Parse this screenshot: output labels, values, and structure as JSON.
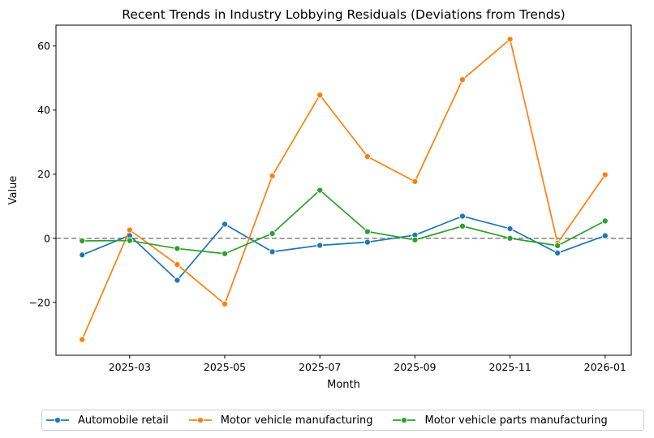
{
  "chart_data": {
    "type": "line",
    "title": "Recent Trends in Industry Lobbying Residuals (Deviations from Trends)",
    "xlabel": "Month",
    "ylabel": "Value",
    "x": [
      "2025-02",
      "2025-03",
      "2025-04",
      "2025-05",
      "2025-06",
      "2025-07",
      "2025-08",
      "2025-09",
      "2025-10",
      "2025-11",
      "2025-12",
      "2026-01"
    ],
    "x_ticks": [
      "2025-03",
      "2025-05",
      "2025-07",
      "2025-09",
      "2025-11",
      "2026-01"
    ],
    "y_ticks": [
      -20,
      0,
      20,
      40,
      60
    ],
    "ylim": [
      -36.5,
      66.5
    ],
    "reference_line": {
      "y": 0,
      "style": "dashed",
      "color": "#808080"
    },
    "grid": false,
    "legend_position": "bottom-center",
    "series": [
      {
        "name": "Automobile retail",
        "color": "#1f77b4",
        "values": [
          -5.2,
          0.9,
          -13.1,
          4.4,
          -4.2,
          -2.2,
          -1.2,
          1.0,
          6.9,
          3.0,
          -4.6,
          0.8
        ]
      },
      {
        "name": "Motor vehicle manufacturing",
        "color": "#ff7f0e",
        "values": [
          -31.6,
          2.6,
          -8.2,
          -20.5,
          19.5,
          44.7,
          25.5,
          17.7,
          49.5,
          62.1,
          -1.5,
          19.8
        ]
      },
      {
        "name": "Motor vehicle parts manufacturing",
        "color": "#2ca02c",
        "values": [
          -0.8,
          -0.7,
          -3.2,
          -4.8,
          1.5,
          15.0,
          2.1,
          -0.5,
          3.8,
          0.0,
          -2.3,
          5.4
        ]
      }
    ]
  }
}
